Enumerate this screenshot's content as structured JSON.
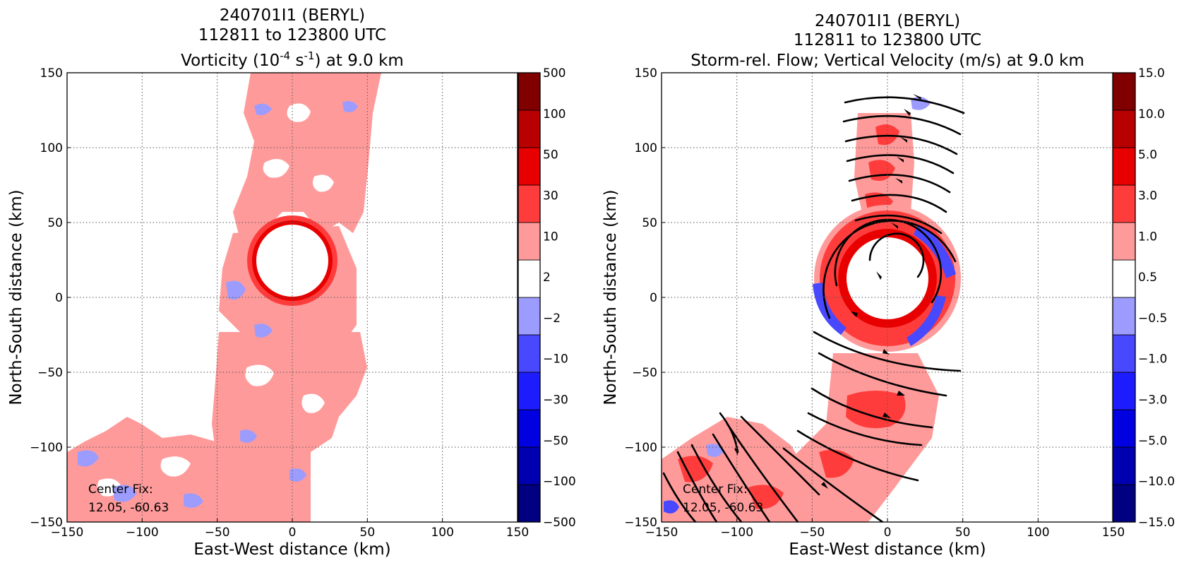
{
  "chart_data": [
    {
      "type": "heatmap",
      "title_lines": [
        "240701I1 (BERYL)",
        "112811 to 123800 UTC"
      ],
      "title_quantity": {
        "prefix": "Vorticity (10",
        "exp1": "-4",
        "mid": " s",
        "exp2": "-1",
        "suffix": ") at 9.0 km"
      },
      "xlabel": "East-West distance (km)",
      "ylabel": "North-South distance (km)",
      "xlim": [
        -150,
        150
      ],
      "ylim": [
        -150,
        150
      ],
      "xticks": [
        "−150",
        "−100",
        "−50",
        "0",
        "50",
        "100",
        "150"
      ],
      "yticks": [
        "−150",
        "−100",
        "−50",
        "0",
        "50",
        "100",
        "150"
      ],
      "grid": true,
      "annotation": [
        "Center Fix:",
        "12.05, -60.63"
      ],
      "colorbar": {
        "levels": [
          "-500",
          "-100",
          "-50",
          "-30",
          "-10",
          "-2",
          "2",
          "10",
          "30",
          "50",
          "100",
          "500"
        ],
        "level_labels": [
          "−500",
          "−100",
          "−50",
          "−30",
          "−10",
          "−2",
          "2",
          "10",
          "30",
          "50",
          "100",
          "500"
        ],
        "colors": [
          "#000080",
          "#0000b0",
          "#0000e0",
          "#1c1cff",
          "#4848ff",
          "#9c9cff",
          "#ffffff",
          "#ff9a9a",
          "#ff3c3c",
          "#e80000",
          "#b80000",
          "#800000"
        ]
      }
    },
    {
      "type": "heatmap",
      "title_lines": [
        "240701I1 (BERYL)",
        "112811 to 123800 UTC",
        "Storm-rel. Flow; Vertical Velocity (m/s) at 9.0 km"
      ],
      "xlabel": "East-West distance (km)",
      "ylabel": "North-South distance (km)",
      "xlim": [
        -150,
        150
      ],
      "ylim": [
        -150,
        150
      ],
      "xticks": [
        "−150",
        "−100",
        "−50",
        "0",
        "50",
        "100",
        "150"
      ],
      "yticks": [
        "−150",
        "−100",
        "−50",
        "0",
        "50",
        "100",
        "150"
      ],
      "grid": true,
      "annotation": [
        "Center Fix:",
        "12.05, -60.63"
      ],
      "streamlines": true,
      "colorbar": {
        "levels": [
          "-15.0",
          "-10.0",
          "-5.0",
          "-3.0",
          "-1.0",
          "-0.5",
          "0.5",
          "1.0",
          "3.0",
          "5.0",
          "10.0",
          "15.0"
        ],
        "level_labels": [
          "−15.0",
          "−10.0",
          "−5.0",
          "−3.0",
          "−1.0",
          "−0.5",
          "0.5",
          "1.0",
          "3.0",
          "5.0",
          "10.0",
          "15.0"
        ],
        "colors": [
          "#000080",
          "#0000b0",
          "#0000e0",
          "#1c1cff",
          "#4848ff",
          "#9c9cff",
          "#ffffff",
          "#ff9a9a",
          "#ff3c3c",
          "#e80000",
          "#b80000",
          "#800000"
        ]
      }
    }
  ]
}
